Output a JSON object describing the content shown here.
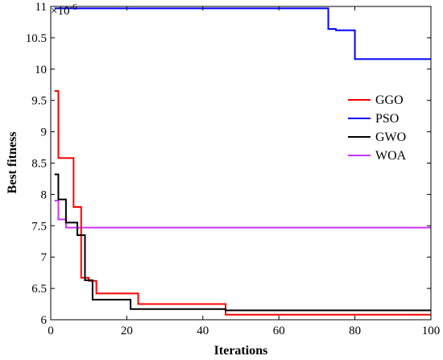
{
  "chart_data": {
    "type": "line",
    "xlabel": "Iterations",
    "ylabel": "Best fitness",
    "y_multiplier": "×10",
    "y_multiplier_exp": "-6",
    "xlim": [
      0,
      100
    ],
    "ylim": [
      6,
      11
    ],
    "xticks": [
      "0",
      "20",
      "40",
      "60",
      "80",
      "100"
    ],
    "yticks": [
      "6",
      "6.5",
      "7",
      "7.5",
      "8",
      "8.5",
      "9",
      "9.5",
      "10",
      "10.5",
      "11"
    ],
    "legend_position": "right",
    "grid": false,
    "series": [
      {
        "name": "GGO",
        "color": "#ff0000",
        "steps": [
          [
            1,
            9.65
          ],
          [
            2,
            8.58
          ],
          [
            6,
            7.8
          ],
          [
            8,
            6.67
          ],
          [
            10,
            6.62
          ],
          [
            12,
            6.42
          ],
          [
            22,
            6.42
          ],
          [
            23,
            6.25
          ],
          [
            46,
            6.08
          ],
          [
            100,
            6.08
          ]
        ]
      },
      {
        "name": "PSO",
        "color": "#0000ff",
        "steps": [
          [
            1,
            10.97
          ],
          [
            72,
            10.97
          ],
          [
            73,
            10.64
          ],
          [
            75,
            10.62
          ],
          [
            80,
            10.16
          ],
          [
            100,
            10.16
          ]
        ]
      },
      {
        "name": "GWO",
        "color": "#000000",
        "steps": [
          [
            1,
            8.32
          ],
          [
            2,
            7.92
          ],
          [
            4,
            7.55
          ],
          [
            7,
            7.35
          ],
          [
            9,
            6.63
          ],
          [
            11,
            6.32
          ],
          [
            21,
            6.17
          ],
          [
            46,
            6.15
          ],
          [
            100,
            6.15
          ]
        ]
      },
      {
        "name": "WOA",
        "color": "#cc33ff",
        "steps": [
          [
            1,
            7.9
          ],
          [
            2,
            7.6
          ],
          [
            4,
            7.47
          ],
          [
            100,
            7.47
          ]
        ]
      }
    ],
    "legend_order": [
      "GGO",
      "PSO",
      "GWO",
      "WOA"
    ]
  }
}
